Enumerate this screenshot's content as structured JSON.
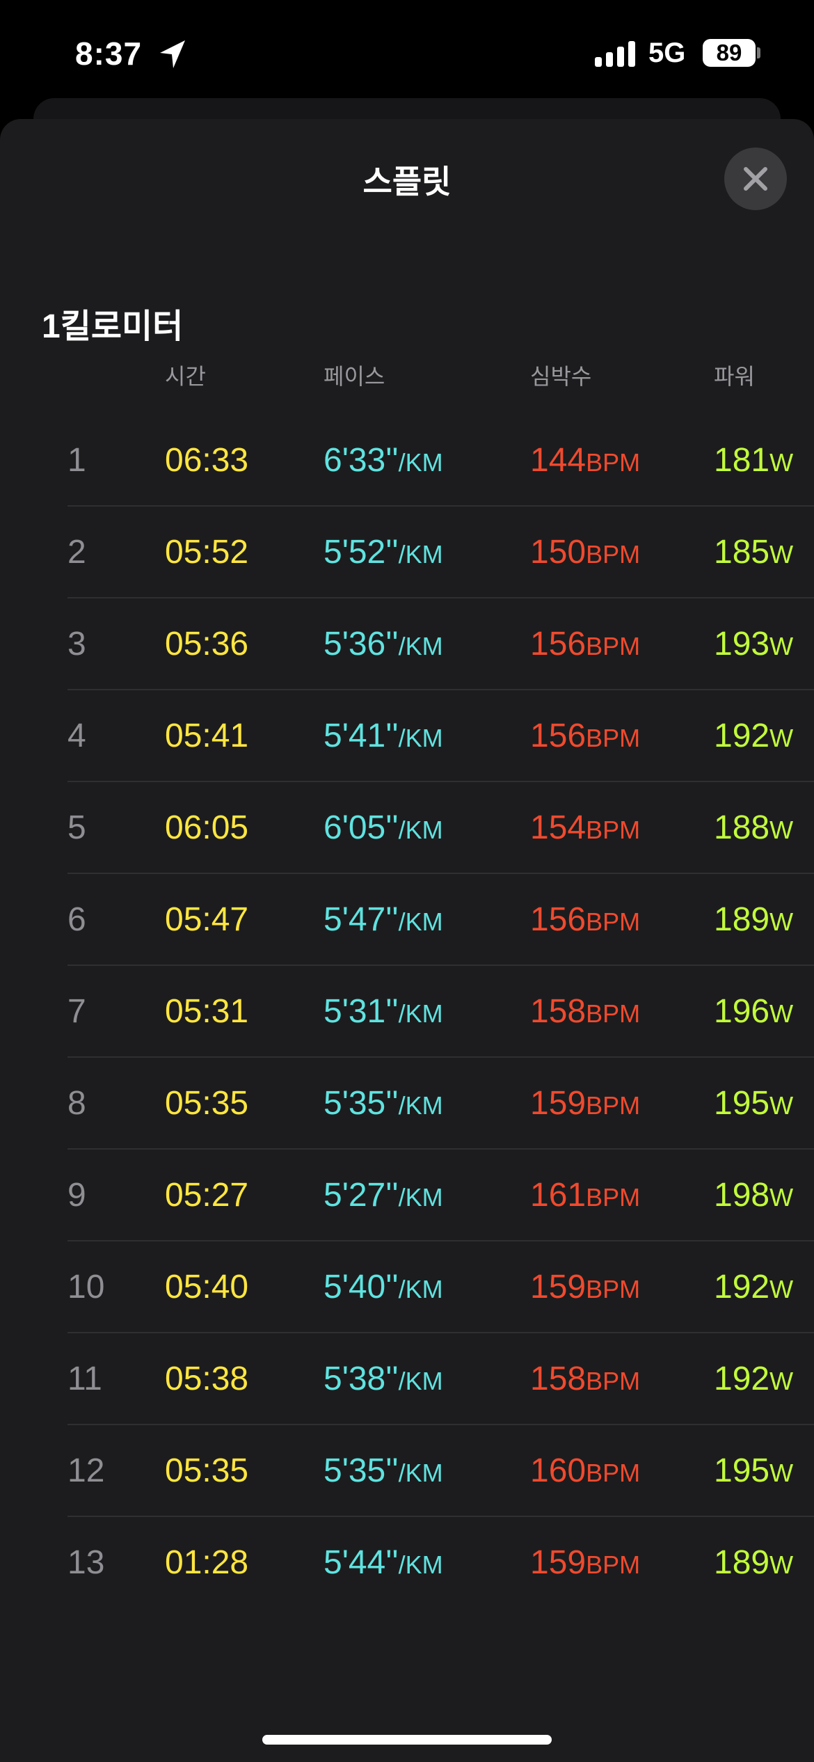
{
  "status_bar": {
    "time": "8:37",
    "network": "5G",
    "battery": "89"
  },
  "sheet": {
    "title": "스플릿",
    "close_icon": "xmark-icon"
  },
  "section": {
    "heading": "1킬로미터"
  },
  "columns": {
    "time": "시간",
    "pace": "페이스",
    "heart_rate": "심박수",
    "power": "파워"
  },
  "units": {
    "pace": "/KM",
    "heart_rate": "BPM",
    "power": "W"
  },
  "colors": {
    "time": "#ffe640",
    "pace": "#5fe3e0",
    "heart_rate": "#f04a2e",
    "power": "#c2fc3b"
  },
  "splits": [
    {
      "n": "1",
      "time": "06:33",
      "pace": "6'33''",
      "hr": "144",
      "power": "181"
    },
    {
      "n": "2",
      "time": "05:52",
      "pace": "5'52''",
      "hr": "150",
      "power": "185"
    },
    {
      "n": "3",
      "time": "05:36",
      "pace": "5'36''",
      "hr": "156",
      "power": "193"
    },
    {
      "n": "4",
      "time": "05:41",
      "pace": "5'41''",
      "hr": "156",
      "power": "192"
    },
    {
      "n": "5",
      "time": "06:05",
      "pace": "6'05''",
      "hr": "154",
      "power": "188"
    },
    {
      "n": "6",
      "time": "05:47",
      "pace": "5'47''",
      "hr": "156",
      "power": "189"
    },
    {
      "n": "7",
      "time": "05:31",
      "pace": "5'31''",
      "hr": "158",
      "power": "196"
    },
    {
      "n": "8",
      "time": "05:35",
      "pace": "5'35''",
      "hr": "159",
      "power": "195"
    },
    {
      "n": "9",
      "time": "05:27",
      "pace": "5'27''",
      "hr": "161",
      "power": "198"
    },
    {
      "n": "10",
      "time": "05:40",
      "pace": "5'40''",
      "hr": "159",
      "power": "192"
    },
    {
      "n": "11",
      "time": "05:38",
      "pace": "5'38''",
      "hr": "158",
      "power": "192"
    },
    {
      "n": "12",
      "time": "05:35",
      "pace": "5'35''",
      "hr": "160",
      "power": "195"
    },
    {
      "n": "13",
      "time": "01:28",
      "pace": "5'44''",
      "hr": "159",
      "power": "189"
    }
  ]
}
